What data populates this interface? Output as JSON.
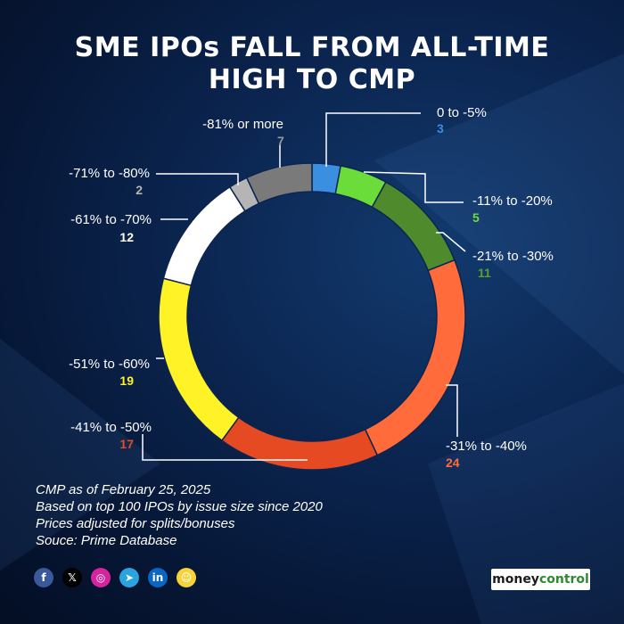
{
  "title_lines": [
    "SME IPOs FALL FROM ALL-TIME",
    "HIGH TO CMP"
  ],
  "chart_data": {
    "type": "pie",
    "donut": true,
    "title": "SME IPOs FALL FROM ALL-TIME HIGH TO CMP",
    "slices": [
      {
        "label": "0 to -5%",
        "value": 3,
        "color": "#3a8fe0",
        "label_color": "#3a8fe0"
      },
      {
        "label": "-11% to -20%",
        "value": 5,
        "color": "#6bdd3a",
        "label_color": "#6bdd3a"
      },
      {
        "label": "-21% to -30%",
        "value": 11,
        "color": "#4f8a2c",
        "label_color": "#5a9e33"
      },
      {
        "label": "-31% to -40%",
        "value": 24,
        "color": "#ff6b3a",
        "label_color": "#ff6b3a"
      },
      {
        "label": "-41% to -50%",
        "value": 17,
        "color": "#e64a22",
        "label_color": "#e64a22"
      },
      {
        "label": "-51% to -60%",
        "value": 19,
        "color": "#fff227",
        "label_color": "#fff227"
      },
      {
        "label": "-61% to -70%",
        "value": 12,
        "color": "#ffffff",
        "label_color": "#ffffff"
      },
      {
        "label": "-71% to -80%",
        "value": 2,
        "color": "#b5b5b5",
        "label_color": "#b5b5b5"
      },
      {
        "label": "-81% or more",
        "value": 7,
        "color": "#7a7a7a",
        "label_color": "#9a9a9a"
      }
    ]
  },
  "notes": [
    "CMP as of February 25, 2025",
    "Based on top 100 IPOs by issue size since 2020",
    "Prices adjusted for splits/bonuses",
    "Souce: Prime Database"
  ],
  "social_icons": [
    {
      "name": "facebook-icon",
      "glyph": "f",
      "color": "#3b5998"
    },
    {
      "name": "x-icon",
      "glyph": "𝕏",
      "color": "#000000"
    },
    {
      "name": "instagram-icon",
      "glyph": "◎",
      "color": "#d6249f"
    },
    {
      "name": "telegram-icon",
      "glyph": "➤",
      "color": "#2aa3df"
    },
    {
      "name": "linkedin-icon",
      "glyph": "in",
      "color": "#0a66c2"
    },
    {
      "name": "snapchat-icon",
      "glyph": "☺",
      "color": "#f7d33a"
    }
  ],
  "brand": {
    "part1": "money",
    "part2": "control"
  }
}
